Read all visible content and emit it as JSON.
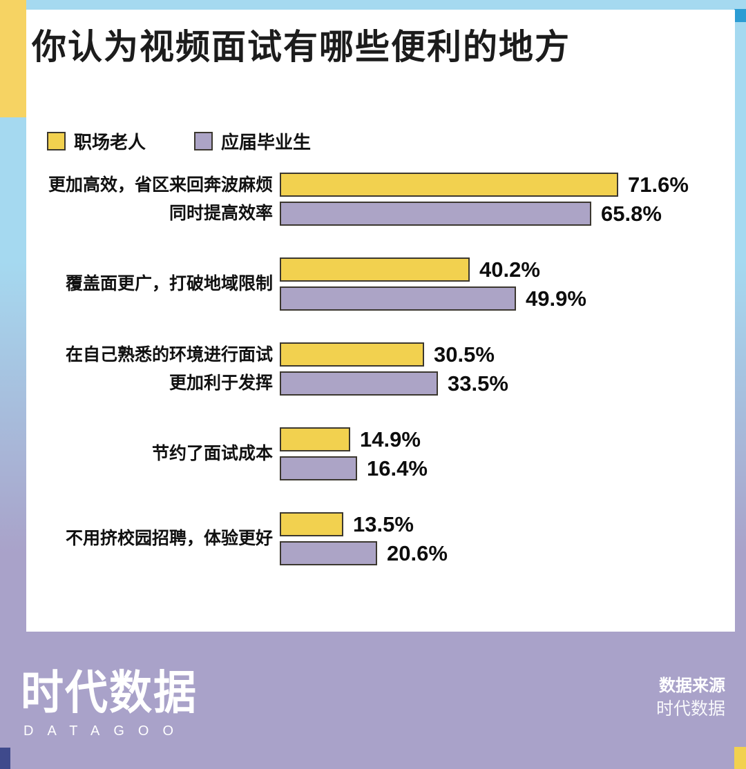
{
  "page": {
    "title": "你认为视频面试有哪些便利的地方"
  },
  "colors": {
    "series_yellow": "#F2D14F",
    "series_purple": "#ACA4C6",
    "bar_border": "#3B372F",
    "background_gradient_top": "#A5D9F0",
    "background_gradient_bottom": "#A9A2C9",
    "accent_left_stripe_yellow": "#F6D363",
    "accent_top_right_blue": "#2C9CD3",
    "accent_bottom_left_navy": "#3F4A8C",
    "accent_bottom_right_yellow": "#F2D14F",
    "card_background": "#FFFFFF"
  },
  "chart_data": {
    "type": "bar",
    "orientation": "horizontal",
    "title": "你认为视频面试有哪些便利的地方",
    "grid": false,
    "legend_position": "top-left",
    "value_suffix": "%",
    "xlim": [
      0,
      80
    ],
    "categories": [
      {
        "lines": [
          "更加高效，省区来回奔波麻烦",
          "同时提高效率"
        ]
      },
      {
        "lines": [
          "覆盖面更广，打破地域限制"
        ]
      },
      {
        "lines": [
          "在自己熟悉的环境进行面试",
          "更加利于发挥"
        ]
      },
      {
        "lines": [
          "节约了面试成本"
        ]
      },
      {
        "lines": [
          "不用挤校园招聘，体验更好"
        ]
      }
    ],
    "series": [
      {
        "name": "职场老人",
        "key": "veterans",
        "color": "#F2D14F",
        "values": [
          71.6,
          40.2,
          30.5,
          14.9,
          13.5
        ]
      },
      {
        "name": "应届毕业生",
        "key": "graduates",
        "color": "#ACA4C6",
        "values": [
          65.8,
          49.9,
          33.5,
          16.4,
          20.6
        ]
      }
    ]
  },
  "footer": {
    "logo_cn": "时代数据",
    "logo_en": "DATAGOO",
    "source_label": "数据来源",
    "source_value": "时代数据"
  }
}
